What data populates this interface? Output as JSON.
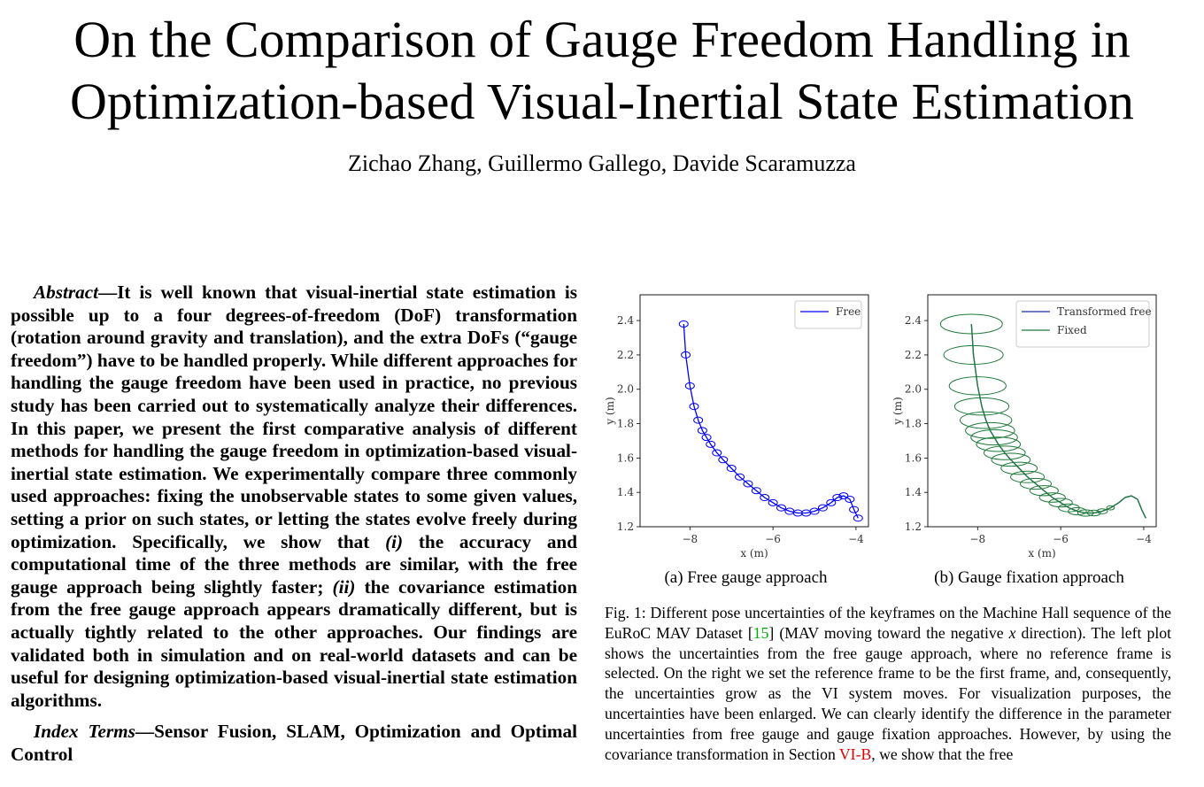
{
  "title_line1": "On the Comparison of Gauge Freedom Handling in",
  "title_line2": "Optimization-based Visual-Inertial State Estimation",
  "authors": "Zichao Zhang, Guillermo Gallego, Davide Scaramuzza",
  "abstract": {
    "label": "Abstract",
    "text": "—It is well known that visual-inertial state estimation is possible up to a four degrees-of-freedom (DoF) transformation (rotation around gravity and translation), and the extra DoFs (“gauge freedom”) have to be handled properly. While different approaches for handling the gauge freedom have been used in practice, no previous study has been carried out to systematically analyze their differences. In this paper, we present the first comparative analysis of different methods for handling the gauge freedom in optimization-based visual-inertial state estimation. We experimentally compare three commonly used approaches: fixing the unobservable states to some given values, setting a prior on such states, or letting the states evolve freely during optimization. Specifically, we show that",
    "i1": "(i)",
    "mid1": " the accuracy and computational time of the three methods are similar, with the free gauge approach being slightly faster; ",
    "i2": "(ii)",
    "mid2": " the covariance estimation from the free gauge approach appears dramatically different, but is actually tightly related to the other approaches. Our findings are validated both in simulation and on real-world datasets and can be useful for designing optimization-based visual-inertial state estimation algorithms."
  },
  "index_terms": {
    "label": "Index Terms",
    "text": "—Sensor Fusion, SLAM, Optimization and Optimal Control"
  },
  "figure": {
    "subcaption_a": "(a) Free gauge approach",
    "subcaption_b": "(b) Gauge fixation approach",
    "caption_part1": "Fig. 1: Different pose uncertainties of the keyframes on the Machine Hall sequence of the EuRoC MAV Dataset [",
    "caption_ref1": "15",
    "caption_part2": "] (MAV moving toward the negative ",
    "caption_math": "x",
    "caption_part3": " direction). The left plot shows the uncertainties from the free gauge approach, where no reference frame is selected. On the right we set the reference frame to be the first frame, and, consequently, the uncertainties grow as the VI system moves. For visualization purposes, the uncertainties have been enlarged. We can clearly identify the difference in the parameter uncertainties from free gauge and gauge fixation approaches. However, by using the covariance transformation in Section ",
    "caption_ref2": "VI-B",
    "caption_part4": ", we show that the free"
  },
  "chart_data": [
    {
      "type": "line",
      "xlabel": "x (m)",
      "ylabel": "y (m)",
      "xticks": [
        "−8",
        "−6",
        "−4"
      ],
      "yticks": [
        "1.2",
        "1.4",
        "1.6",
        "1.8",
        "2.0",
        "2.2",
        "2.4"
      ],
      "xlim": [
        -9.2,
        -3.7
      ],
      "ylim": [
        1.2,
        2.55
      ],
      "legend_position": "top-right",
      "series": [
        {
          "name": "Free",
          "color": "#0000ff",
          "x": [
            -8.15,
            -8.1,
            -8.0,
            -7.9,
            -7.8,
            -7.7,
            -7.6,
            -7.5,
            -7.35,
            -7.2,
            -7.0,
            -6.8,
            -6.6,
            -6.4,
            -6.2,
            -6.0,
            -5.8,
            -5.6,
            -5.4,
            -5.2,
            -5.0,
            -4.8,
            -4.6,
            -4.45,
            -4.3,
            -4.15,
            -4.05,
            -3.95
          ],
          "y": [
            2.38,
            2.2,
            2.02,
            1.9,
            1.82,
            1.76,
            1.72,
            1.68,
            1.63,
            1.59,
            1.54,
            1.49,
            1.45,
            1.41,
            1.37,
            1.34,
            1.31,
            1.29,
            1.28,
            1.28,
            1.29,
            1.31,
            1.34,
            1.37,
            1.38,
            1.36,
            1.3,
            1.25
          ]
        }
      ]
    },
    {
      "type": "line",
      "xlabel": "x (m)",
      "ylabel": "y (m)",
      "xticks": [
        "−8",
        "−6",
        "−4"
      ],
      "yticks": [
        "1.2",
        "1.4",
        "1.6",
        "1.8",
        "2.0",
        "2.2",
        "2.4"
      ],
      "xlim": [
        -9.2,
        -3.7
      ],
      "ylim": [
        1.2,
        2.55
      ],
      "legend_position": "top-right",
      "series": [
        {
          "name": "Transformed free",
          "color": "#1f2fa0",
          "x": [
            -8.15,
            -8.1,
            -8.0,
            -7.9,
            -7.8,
            -7.7,
            -7.6,
            -7.5,
            -7.35,
            -7.2,
            -7.0,
            -6.8,
            -6.6,
            -6.4,
            -6.2,
            -6.0,
            -5.8,
            -5.6,
            -5.4,
            -5.2,
            -5.0,
            -4.8,
            -4.6,
            -4.45,
            -4.3,
            -4.15,
            -4.05,
            -3.95
          ],
          "y": [
            2.38,
            2.2,
            2.02,
            1.9,
            1.82,
            1.76,
            1.72,
            1.68,
            1.63,
            1.59,
            1.54,
            1.49,
            1.45,
            1.41,
            1.37,
            1.34,
            1.31,
            1.29,
            1.28,
            1.28,
            1.29,
            1.31,
            1.34,
            1.37,
            1.38,
            1.36,
            1.3,
            1.25
          ]
        },
        {
          "name": "Fixed",
          "color": "#1f7a3a",
          "x": [
            -8.15,
            -8.1,
            -8.0,
            -7.9,
            -7.8,
            -7.7,
            -7.6,
            -7.5,
            -7.35,
            -7.2,
            -7.0,
            -6.8,
            -6.6,
            -6.4,
            -6.2,
            -6.0,
            -5.8,
            -5.6,
            -5.4,
            -5.2,
            -5.0,
            -4.8,
            -4.6,
            -4.45,
            -4.3,
            -4.15,
            -4.05,
            -3.95
          ],
          "y": [
            2.38,
            2.2,
            2.02,
            1.9,
            1.82,
            1.76,
            1.72,
            1.68,
            1.63,
            1.59,
            1.54,
            1.49,
            1.45,
            1.41,
            1.37,
            1.34,
            1.31,
            1.29,
            1.28,
            1.28,
            1.29,
            1.31,
            1.34,
            1.37,
            1.38,
            1.36,
            1.3,
            1.25
          ]
        }
      ]
    }
  ]
}
